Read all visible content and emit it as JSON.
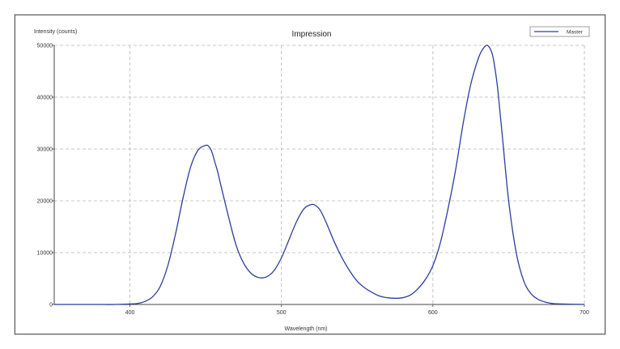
{
  "chart_data": {
    "type": "line",
    "title": "Impression",
    "xlabel": "Wavelength (nm)",
    "ylabel": "Intensity (counts)",
    "xlim": [
      350,
      700
    ],
    "ylim": [
      0,
      50000
    ],
    "xticks": [
      400,
      500,
      600,
      700
    ],
    "yticks": [
      0,
      10000,
      20000,
      30000,
      40000,
      50000
    ],
    "grid": true,
    "grid_style": "dashed",
    "legend_position": "top-right",
    "series": [
      {
        "name": "Master",
        "color": "#2c3d9e",
        "x": [
          350,
          360,
          370,
          380,
          390,
          400,
          405,
          410,
          415,
          420,
          425,
          430,
          435,
          440,
          445,
          450,
          452,
          454,
          456,
          458,
          460,
          465,
          470,
          475,
          480,
          485,
          490,
          495,
          500,
          505,
          510,
          515,
          520,
          523,
          526,
          530,
          535,
          540,
          545,
          550,
          555,
          560,
          565,
          570,
          575,
          580,
          585,
          590,
          595,
          600,
          605,
          610,
          615,
          620,
          625,
          630,
          633,
          636,
          639,
          641,
          643,
          646,
          650,
          655,
          660,
          665,
          670,
          675,
          680,
          690,
          700
        ],
        "y": [
          0,
          0,
          0,
          0,
          0,
          100,
          200,
          600,
          1500,
          3500,
          7500,
          13500,
          20500,
          26500,
          29800,
          30700,
          30500,
          29500,
          27500,
          25500,
          23000,
          17000,
          11500,
          8000,
          6000,
          5200,
          5300,
          6500,
          9000,
          12500,
          16000,
          18500,
          19300,
          19000,
          18000,
          15500,
          12000,
          9000,
          6500,
          4500,
          3200,
          2300,
          1600,
          1300,
          1200,
          1300,
          1800,
          3000,
          4800,
          7500,
          12000,
          18500,
          26000,
          35000,
          42500,
          47500,
          49300,
          50000,
          48500,
          45500,
          41000,
          32000,
          20000,
          10000,
          4500,
          2000,
          900,
          400,
          150,
          50,
          0
        ]
      }
    ]
  }
}
